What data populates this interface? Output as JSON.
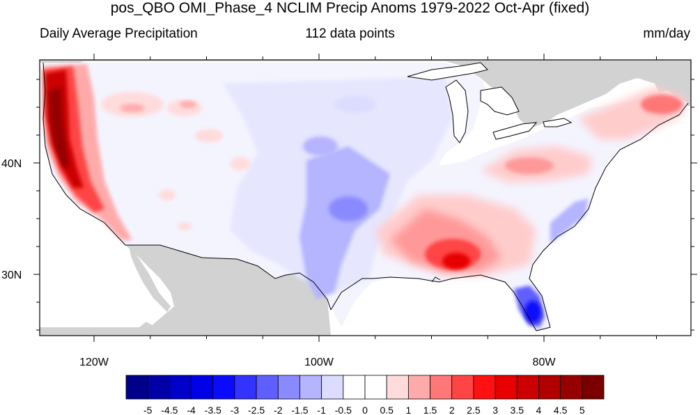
{
  "title": "pos_QBO OMI_Phase_4 NCLIM Precip Anoms 1979-2022 Oct-Apr (fixed)",
  "subtitle_left": "Daily Average Precipitation",
  "subtitle_center": "112 data points",
  "subtitle_right": "mm/day",
  "lat_labels": [
    "40N",
    "30N"
  ],
  "lon_labels": [
    "120W",
    "100W",
    "80W"
  ],
  "colorbar": {
    "labels": [
      "-5",
      "-4.5",
      "-4",
      "-3.5",
      "-3",
      "-2.5",
      "-2",
      "-1.5",
      "-1",
      "-0.5",
      "0",
      "0.5",
      "1",
      "1.5",
      "2",
      "2.5",
      "3",
      "3.5",
      "4",
      "4.5",
      "5"
    ],
    "colors": [
      "#00008b",
      "#0000a6",
      "#0000c8",
      "#0000e6",
      "#0a0aff",
      "#3333ff",
      "#5f5fff",
      "#8a8aff",
      "#b4b4ff",
      "#dcdcff",
      "#ffffff",
      "#ffffff",
      "#ffdcdc",
      "#ffaaaa",
      "#ff7777",
      "#ff4444",
      "#ff1111",
      "#e60000",
      "#cc0000",
      "#b00000",
      "#960000",
      "#7a0000"
    ]
  },
  "colors": {
    "land_mask": "#d2d2d2",
    "strong_wet": "#cc0000",
    "wet": "#ff7777",
    "light_wet": "#ffcccc",
    "light_dry": "#dcdcff",
    "dry": "#b4b4ff",
    "strong_dry": "#0000e6"
  }
}
